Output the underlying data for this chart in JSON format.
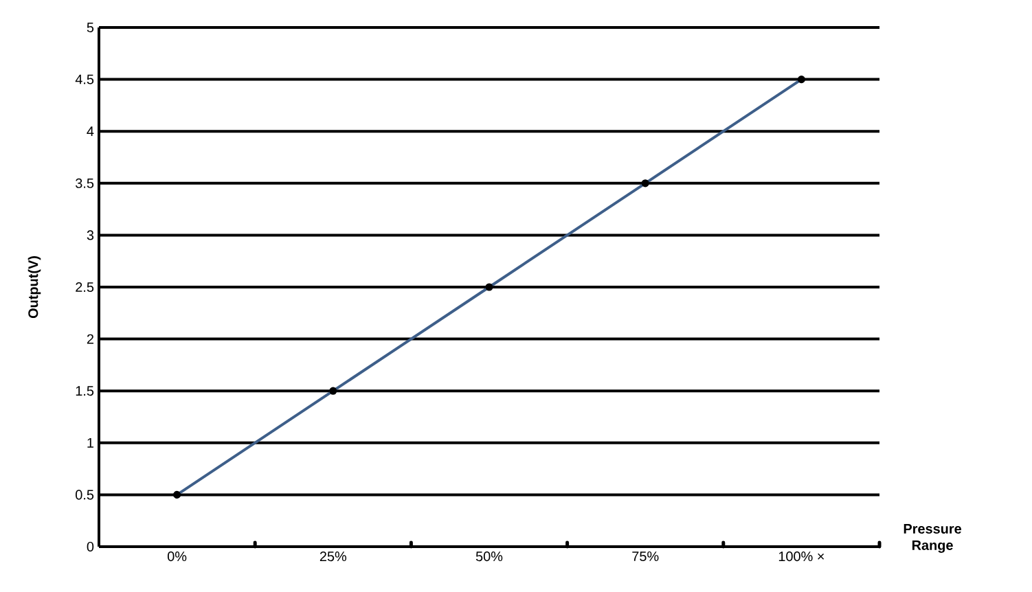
{
  "chart_data": {
    "type": "line",
    "xlabel": "Pressure Range",
    "ylabel": "Output(V)",
    "categories": [
      "0%",
      "25%",
      "50%",
      "75%",
      "100% ×"
    ],
    "series": [
      {
        "color": "#3e5f8a",
        "values": [
          0.5,
          1.5,
          2.5,
          3.5,
          4.5
        ]
      }
    ],
    "ylim": [
      0,
      5
    ],
    "yticks": [
      0,
      0.5,
      1,
      1.5,
      2,
      2.5,
      3,
      3.5,
      4,
      4.5,
      5
    ],
    "grid": "y",
    "marker": "circle",
    "line_style": "solid"
  }
}
